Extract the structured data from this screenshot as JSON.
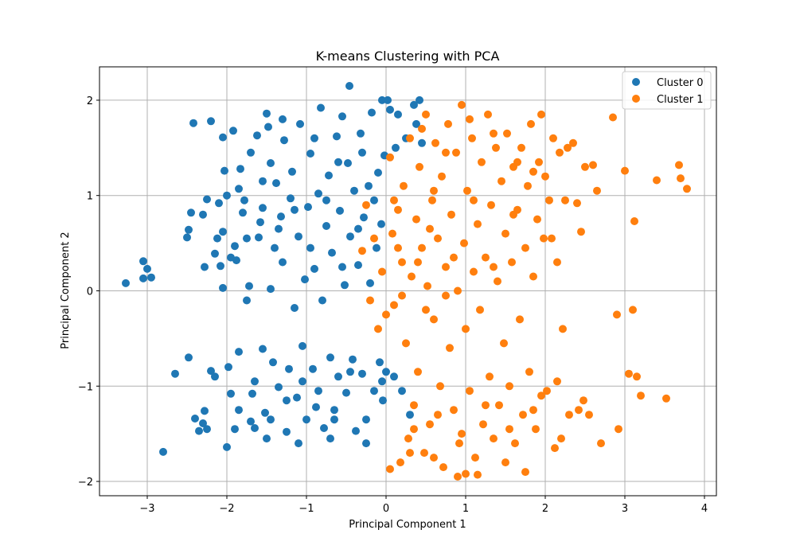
{
  "chart_data": {
    "type": "scatter",
    "title": "K-means Clustering with PCA",
    "xlabel": "Principal Component 1",
    "ylabel": "Principal Component 2",
    "xlim": [
      -3.6,
      4.15
    ],
    "ylim": [
      -2.15,
      2.35
    ],
    "xticks": [
      -3,
      -2,
      -1,
      0,
      1,
      2,
      3,
      4
    ],
    "yticks": [
      -2,
      -1,
      0,
      1,
      2
    ],
    "grid": true,
    "legend": {
      "position": "top-right"
    },
    "series": [
      {
        "name": "Cluster 0",
        "color": "#1f77b4",
        "points": [
          [
            -3.27,
            0.08
          ],
          [
            -3.05,
            0.31
          ],
          [
            -3.0,
            0.23
          ],
          [
            -2.95,
            0.14
          ],
          [
            -3.05,
            0.13
          ],
          [
            -2.8,
            -1.69
          ],
          [
            -2.65,
            -0.87
          ],
          [
            -2.5,
            0.56
          ],
          [
            -2.48,
            0.64
          ],
          [
            -2.45,
            0.82
          ],
          [
            -2.48,
            -0.7
          ],
          [
            -2.42,
            1.76
          ],
          [
            -2.4,
            -1.34
          ],
          [
            -2.35,
            -1.47
          ],
          [
            -2.3,
            -1.39
          ],
          [
            -2.28,
            -1.26
          ],
          [
            -2.25,
            -1.45
          ],
          [
            -2.2,
            1.78
          ],
          [
            -2.3,
            0.8
          ],
          [
            -2.25,
            0.96
          ],
          [
            -2.28,
            0.25
          ],
          [
            -2.2,
            -0.84
          ],
          [
            -2.15,
            -0.9
          ],
          [
            -2.1,
            0.92
          ],
          [
            -2.12,
            0.55
          ],
          [
            -2.15,
            0.39
          ],
          [
            -2.08,
            0.26
          ],
          [
            -2.05,
            0.62
          ],
          [
            -2.03,
            1.26
          ],
          [
            -2.05,
            1.61
          ],
          [
            -2.0,
            -1.64
          ],
          [
            -2.05,
            0.03
          ],
          [
            -1.98,
            -0.8
          ],
          [
            -1.95,
            -1.08
          ],
          [
            -1.92,
            1.68
          ],
          [
            -1.9,
            0.47
          ],
          [
            -1.88,
            0.32
          ],
          [
            -1.85,
            -0.64
          ],
          [
            -1.85,
            1.07
          ],
          [
            -1.83,
            1.28
          ],
          [
            -1.8,
            0.82
          ],
          [
            -1.78,
            0.95
          ],
          [
            -1.75,
            -0.1
          ],
          [
            -1.72,
            0.05
          ],
          [
            -1.7,
            -1.37
          ],
          [
            -1.68,
            -1.08
          ],
          [
            -1.65,
            -1.44
          ],
          [
            -1.62,
            1.63
          ],
          [
            -1.6,
            0.56
          ],
          [
            -1.58,
            0.72
          ],
          [
            -1.55,
            0.87
          ],
          [
            -1.55,
            -0.61
          ],
          [
            -1.52,
            -1.28
          ],
          [
            -1.5,
            1.86
          ],
          [
            -1.48,
            1.72
          ],
          [
            -1.45,
            1.34
          ],
          [
            -1.45,
            0.02
          ],
          [
            -1.42,
            -0.75
          ],
          [
            -1.4,
            0.45
          ],
          [
            -1.38,
            1.13
          ],
          [
            -1.35,
            -1.01
          ],
          [
            -1.32,
            0.78
          ],
          [
            -1.3,
            0.3
          ],
          [
            -1.28,
            1.58
          ],
          [
            -1.25,
            -1.48
          ],
          [
            -1.22,
            -0.82
          ],
          [
            -1.2,
            0.97
          ],
          [
            -1.18,
            1.25
          ],
          [
            -1.15,
            -0.18
          ],
          [
            -1.12,
            -1.12
          ],
          [
            -1.1,
            0.57
          ],
          [
            -1.08,
            1.75
          ],
          [
            -1.05,
            -0.58
          ],
          [
            -1.02,
            0.12
          ],
          [
            -1.0,
            -1.35
          ],
          [
            -0.98,
            0.88
          ],
          [
            -0.95,
            1.44
          ],
          [
            -0.92,
            -0.82
          ],
          [
            -0.9,
            0.23
          ],
          [
            -0.88,
            -1.22
          ],
          [
            -0.85,
            1.02
          ],
          [
            -0.82,
            1.92
          ],
          [
            -0.8,
            -0.1
          ],
          [
            -0.78,
            -1.44
          ],
          [
            -0.75,
            0.68
          ],
          [
            -0.72,
            1.21
          ],
          [
            -0.7,
            -0.7
          ],
          [
            -0.68,
            0.4
          ],
          [
            -0.65,
            -1.35
          ],
          [
            -0.62,
            1.62
          ],
          [
            -0.6,
            -0.9
          ],
          [
            -0.58,
            0.84
          ],
          [
            -0.55,
            1.83
          ],
          [
            -0.52,
            0.06
          ],
          [
            -0.5,
            -1.07
          ],
          [
            -0.48,
            1.34
          ],
          [
            -0.46,
            2.15
          ],
          [
            -0.45,
            0.57
          ],
          [
            -0.42,
            -0.72
          ],
          [
            -0.4,
            1.05
          ],
          [
            -0.38,
            -1.47
          ],
          [
            -0.35,
            0.27
          ],
          [
            -0.32,
            1.65
          ],
          [
            -0.3,
            -0.87
          ],
          [
            -0.28,
            0.77
          ],
          [
            -0.25,
            -1.6
          ],
          [
            -0.22,
            1.1
          ],
          [
            -0.2,
            0.08
          ],
          [
            -0.18,
            1.87
          ],
          [
            -0.15,
            -1.05
          ],
          [
            -0.12,
            0.45
          ],
          [
            -0.1,
            1.24
          ],
          [
            -0.08,
            -0.75
          ],
          [
            -0.06,
            0.7
          ],
          [
            -0.05,
            2.0
          ],
          [
            -0.04,
            -1.15
          ],
          [
            -0.02,
            1.42
          ],
          [
            0.0,
            -0.85
          ],
          [
            0.02,
            2.0
          ],
          [
            0.05,
            1.9
          ],
          [
            0.1,
            -0.9
          ],
          [
            0.12,
            1.5
          ],
          [
            0.15,
            1.85
          ],
          [
            0.2,
            -1.05
          ],
          [
            0.25,
            1.6
          ],
          [
            0.3,
            -1.3
          ],
          [
            0.35,
            1.95
          ],
          [
            0.38,
            1.75
          ],
          [
            0.42,
            2.0
          ],
          [
            0.45,
            1.55
          ],
          [
            -1.95,
            0.35
          ],
          [
            -1.75,
            0.55
          ],
          [
            -1.55,
            1.15
          ],
          [
            -1.35,
            0.65
          ],
          [
            -1.15,
            0.85
          ],
          [
            -0.95,
            0.45
          ],
          [
            -0.75,
            0.95
          ],
          [
            -0.55,
            0.25
          ],
          [
            -0.35,
            0.65
          ],
          [
            -0.15,
            0.95
          ],
          [
            -1.85,
            -1.25
          ],
          [
            -1.65,
            -0.95
          ],
          [
            -1.45,
            -1.35
          ],
          [
            -1.25,
            -1.15
          ],
          [
            -1.05,
            -0.95
          ],
          [
            -0.85,
            -1.05
          ],
          [
            -0.65,
            -1.25
          ],
          [
            -0.45,
            -0.85
          ],
          [
            -0.25,
            -1.35
          ],
          [
            -0.05,
            -0.95
          ],
          [
            -2.0,
            1.0
          ],
          [
            -1.7,
            1.45
          ],
          [
            -1.3,
            1.8
          ],
          [
            -0.9,
            1.6
          ],
          [
            -0.6,
            1.35
          ],
          [
            -0.3,
            1.45
          ],
          [
            -1.9,
            -1.45
          ],
          [
            -1.5,
            -1.55
          ],
          [
            -1.1,
            -1.6
          ],
          [
            -0.7,
            -1.55
          ]
        ]
      },
      {
        "name": "Cluster 1",
        "color": "#ff7f0e",
        "points": [
          [
            -0.3,
            0.42
          ],
          [
            -0.25,
            0.9
          ],
          [
            -0.2,
            -0.1
          ],
          [
            -0.15,
            0.55
          ],
          [
            -0.1,
            -0.4
          ],
          [
            -0.05,
            0.2
          ],
          [
            0.0,
            -0.25
          ],
          [
            0.05,
            1.4
          ],
          [
            0.08,
            0.6
          ],
          [
            0.1,
            -0.15
          ],
          [
            0.15,
            0.85
          ],
          [
            0.18,
            -1.8
          ],
          [
            0.2,
            0.3
          ],
          [
            0.22,
            1.1
          ],
          [
            0.25,
            -0.55
          ],
          [
            0.28,
            -1.55
          ],
          [
            0.3,
            1.6
          ],
          [
            0.32,
            0.15
          ],
          [
            0.35,
            -1.2
          ],
          [
            0.38,
            0.75
          ],
          [
            0.4,
            -0.85
          ],
          [
            0.42,
            1.3
          ],
          [
            0.45,
            0.45
          ],
          [
            0.48,
            -1.7
          ],
          [
            0.5,
            1.85
          ],
          [
            0.52,
            0.05
          ],
          [
            0.55,
            -1.4
          ],
          [
            0.58,
            0.95
          ],
          [
            0.6,
            -0.3
          ],
          [
            0.62,
            1.55
          ],
          [
            0.65,
            0.55
          ],
          [
            0.68,
            -1.0
          ],
          [
            0.7,
            1.2
          ],
          [
            0.72,
            -1.85
          ],
          [
            0.75,
            0.25
          ],
          [
            0.78,
            1.75
          ],
          [
            0.8,
            -0.6
          ],
          [
            0.82,
            0.8
          ],
          [
            0.85,
            -1.25
          ],
          [
            0.88,
            1.45
          ],
          [
            0.9,
            0.0
          ],
          [
            0.92,
            -1.6
          ],
          [
            0.95,
            1.95
          ],
          [
            0.98,
            0.5
          ],
          [
            1.0,
            -0.4
          ],
          [
            1.02,
            1.05
          ],
          [
            1.05,
            -1.05
          ],
          [
            1.08,
            1.6
          ],
          [
            1.1,
            0.2
          ],
          [
            1.12,
            -1.75
          ],
          [
            1.15,
            0.7
          ],
          [
            1.18,
            -0.2
          ],
          [
            1.2,
            1.35
          ],
          [
            1.22,
            -1.4
          ],
          [
            1.25,
            0.35
          ],
          [
            1.28,
            1.85
          ],
          [
            1.3,
            -0.9
          ],
          [
            1.32,
            0.9
          ],
          [
            1.35,
            -1.55
          ],
          [
            1.38,
            1.5
          ],
          [
            1.4,
            0.1
          ],
          [
            1.42,
            -1.2
          ],
          [
            1.45,
            1.15
          ],
          [
            1.48,
            -0.55
          ],
          [
            1.5,
            0.6
          ],
          [
            1.52,
            1.65
          ],
          [
            1.55,
            -1.0
          ],
          [
            1.58,
            0.3
          ],
          [
            1.6,
            1.3
          ],
          [
            1.62,
            -1.6
          ],
          [
            1.65,
            0.85
          ],
          [
            1.68,
            -0.3
          ],
          [
            1.7,
            1.5
          ],
          [
            1.72,
            -1.3
          ],
          [
            1.75,
            0.45
          ],
          [
            1.78,
            1.1
          ],
          [
            1.8,
            -0.85
          ],
          [
            1.82,
            1.75
          ],
          [
            1.85,
            0.15
          ],
          [
            1.88,
            -1.45
          ],
          [
            1.9,
            0.75
          ],
          [
            1.92,
            1.35
          ],
          [
            1.95,
            -1.1
          ],
          [
            1.98,
            0.55
          ],
          [
            2.0,
            1.2
          ],
          [
            2.02,
            -1.05
          ],
          [
            2.05,
            0.95
          ],
          [
            2.08,
            0.55
          ],
          [
            2.1,
            1.6
          ],
          [
            2.12,
            -1.65
          ],
          [
            2.15,
            0.3
          ],
          [
            2.18,
            1.45
          ],
          [
            2.2,
            -1.55
          ],
          [
            2.22,
            -0.4
          ],
          [
            2.25,
            0.95
          ],
          [
            2.28,
            1.5
          ],
          [
            2.3,
            -1.3
          ],
          [
            2.35,
            1.55
          ],
          [
            2.4,
            0.92
          ],
          [
            2.42,
            -1.25
          ],
          [
            2.45,
            0.62
          ],
          [
            2.48,
            -1.15
          ],
          [
            2.5,
            1.3
          ],
          [
            2.55,
            -1.3
          ],
          [
            2.6,
            1.32
          ],
          [
            2.65,
            1.05
          ],
          [
            2.7,
            -1.6
          ],
          [
            2.85,
            1.82
          ],
          [
            2.9,
            -0.25
          ],
          [
            2.92,
            -1.45
          ],
          [
            3.0,
            1.26
          ],
          [
            3.05,
            -0.87
          ],
          [
            3.1,
            -0.2
          ],
          [
            3.12,
            0.73
          ],
          [
            3.15,
            -0.9
          ],
          [
            3.2,
            -1.1
          ],
          [
            3.4,
            1.16
          ],
          [
            3.52,
            -1.13
          ],
          [
            3.68,
            1.32
          ],
          [
            3.7,
            1.18
          ],
          [
            3.78,
            1.07
          ],
          [
            0.9,
            -1.95
          ],
          [
            1.0,
            -1.92
          ],
          [
            1.15,
            -1.93
          ],
          [
            0.05,
            -1.87
          ],
          [
            0.3,
            -1.7
          ],
          [
            0.6,
            -1.75
          ],
          [
            1.75,
            -1.9
          ],
          [
            1.5,
            -1.8
          ],
          [
            0.1,
            0.95
          ],
          [
            0.4,
            0.3
          ],
          [
            0.6,
            1.05
          ],
          [
            0.85,
            0.35
          ],
          [
            1.1,
            0.95
          ],
          [
            1.35,
            0.25
          ],
          [
            1.6,
            0.8
          ],
          [
            1.85,
            1.25
          ],
          [
            0.2,
            -0.05
          ],
          [
            0.5,
            -0.2
          ],
          [
            0.75,
            -0.05
          ],
          [
            0.35,
            -1.45
          ],
          [
            0.65,
            -1.3
          ],
          [
            0.95,
            -1.5
          ],
          [
            1.25,
            -1.2
          ],
          [
            1.55,
            -1.45
          ],
          [
            1.85,
            -1.25
          ],
          [
            2.15,
            -0.95
          ],
          [
            0.45,
            1.7
          ],
          [
            0.75,
            1.45
          ],
          [
            1.05,
            1.8
          ],
          [
            1.35,
            1.65
          ],
          [
            1.65,
            1.35
          ],
          [
            1.95,
            1.85
          ],
          [
            0.15,
            0.45
          ],
          [
            0.55,
            0.65
          ]
        ]
      }
    ]
  }
}
